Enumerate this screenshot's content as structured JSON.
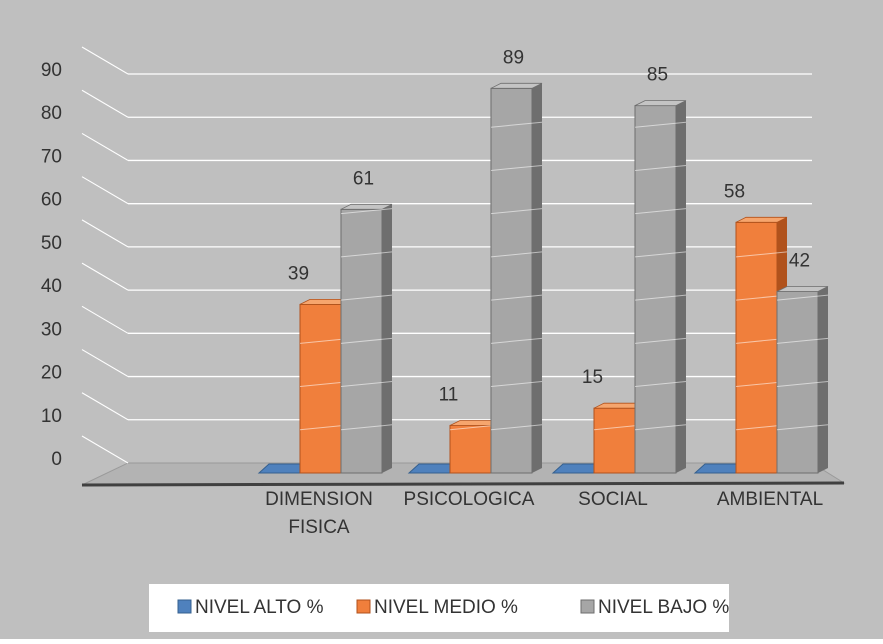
{
  "chart_data": {
    "type": "bar",
    "title": "",
    "xlabel": "",
    "ylabel": "",
    "ylim": [
      0,
      90
    ],
    "yticks": [
      "0",
      "10",
      "20",
      "30",
      "40",
      "50",
      "60",
      "70",
      "80",
      "90"
    ],
    "categories": [
      "DIMENSION FISICA",
      "PSICOLOGICA",
      "SOCIAL",
      "AMBIENTAL"
    ],
    "series": [
      {
        "name": "NIVEL ALTO %",
        "values": [
          0,
          0,
          0,
          0
        ],
        "labels": [
          "",
          "",
          "",
          ""
        ]
      },
      {
        "name": "NIVEL MEDIO  %",
        "values": [
          39,
          11,
          15,
          58
        ],
        "labels": [
          "39",
          "11",
          "15",
          "58"
        ]
      },
      {
        "name": "NIVEL BAJO %",
        "values": [
          61,
          89,
          85,
          42
        ],
        "labels": [
          "61",
          "89",
          "85",
          "42"
        ]
      }
    ],
    "grid": true,
    "legend_position": "bottom",
    "style": "3d-clustered-column"
  },
  "colors": {
    "background": "#bfbfbf",
    "legend_background": "#ffffff",
    "series": [
      "#4f81bd",
      "#f07f3c",
      "#a6a6a6"
    ],
    "series_dark": [
      "#35608f",
      "#b0521c",
      "#6e6e6e"
    ],
    "series_top": [
      "#7aa3d6",
      "#f6a56d",
      "#c4c4c4"
    ],
    "gridline": "#ffffff",
    "text": "#333333"
  }
}
